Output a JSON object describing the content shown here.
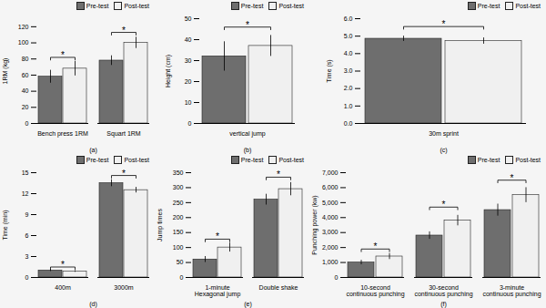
{
  "chart_data": [
    {
      "type": "bar",
      "xlabel": "(a)",
      "ylabel": "1RM (kg)",
      "categories": [
        "Bench press 1RM",
        "Squart 1RM"
      ],
      "series": [
        {
          "name": "Pre-test",
          "color": "#6e6e6e",
          "values": [
            58,
            78
          ],
          "errors": [
            8,
            6
          ]
        },
        {
          "name": "Post-test",
          "color": "#f0f0f0",
          "values": [
            68,
            100
          ],
          "errors": [
            9,
            7
          ]
        }
      ],
      "ylim": [
        0,
        130
      ],
      "yticks": [
        0,
        20,
        40,
        60,
        80,
        100,
        120
      ],
      "legend": "upper right",
      "significance": [
        {
          "category": "Bench press 1RM",
          "y": 82,
          "label": "*"
        },
        {
          "category": "Squart 1RM",
          "y": 113,
          "label": "*"
        }
      ]
    },
    {
      "type": "bar",
      "xlabel": "(b)",
      "ylabel": "Height (cm)",
      "categories": [
        "vertical jump"
      ],
      "series": [
        {
          "name": "Pre-test",
          "color": "#6e6e6e",
          "values": [
            32
          ],
          "errors": [
            7
          ]
        },
        {
          "name": "Post-test",
          "color": "#f0f0f0",
          "values": [
            37
          ],
          "errors": [
            5
          ]
        }
      ],
      "ylim": [
        0,
        50
      ],
      "yticks": [
        0,
        10,
        20,
        30,
        40,
        50
      ],
      "legend": "upper right",
      "significance": [
        {
          "category": "vertical jump",
          "y": 46,
          "label": "*"
        }
      ]
    },
    {
      "type": "bar",
      "xlabel": "(c)",
      "ylabel": "Time (s)",
      "categories": [
        "30m sprint"
      ],
      "series": [
        {
          "name": "Pre-test",
          "color": "#6e6e6e",
          "values": [
            4.85
          ],
          "errors": [
            0.15
          ]
        },
        {
          "name": "Post-test",
          "color": "#f0f0f0",
          "values": [
            4.72
          ],
          "errors": [
            0.18
          ]
        }
      ],
      "ylim": [
        0,
        6
      ],
      "yticks": [
        0,
        1,
        2,
        3,
        4,
        5,
        6
      ],
      "legend": "upper right",
      "significance": [
        {
          "category": "30m sprint",
          "y": 5.55,
          "label": "*"
        }
      ]
    },
    {
      "type": "bar",
      "xlabel": "(d)",
      "ylabel": "Time (min)",
      "categories": [
        "400m",
        "3000m"
      ],
      "series": [
        {
          "name": "Pre-test",
          "color": "#6e6e6e",
          "values": [
            1.0,
            13.5
          ],
          "errors": [
            0.15,
            0.5
          ]
        },
        {
          "name": "Post-test",
          "color": "#f0f0f0",
          "values": [
            0.85,
            12.5
          ],
          "errors": [
            0.1,
            0.4
          ]
        }
      ],
      "ylim": [
        0,
        15
      ],
      "yticks": [
        0,
        3,
        6,
        9,
        12,
        15
      ],
      "legend": "upper right",
      "significance": [
        {
          "category": "400m",
          "y": 1.5,
          "label": "*"
        },
        {
          "category": "3000m",
          "y": 14.6,
          "label": "*"
        }
      ]
    },
    {
      "type": "bar",
      "xlabel": "(e)",
      "ylabel": "Jump times",
      "categories": [
        "1-minute\nHexagonal jump",
        "Double shake"
      ],
      "series": [
        {
          "name": "Pre-test",
          "color": "#6e6e6e",
          "values": [
            60,
            260
          ],
          "errors": [
            10,
            18
          ]
        },
        {
          "name": "Post-test",
          "color": "#f0f0f0",
          "values": [
            100,
            295
          ],
          "errors": [
            15,
            22
          ]
        }
      ],
      "ylim": [
        0,
        350
      ],
      "yticks": [
        0,
        50,
        100,
        150,
        200,
        250,
        300,
        350
      ],
      "legend": "upper right",
      "significance": [
        {
          "category": "1-minute\nHexagonal jump",
          "y": 128,
          "label": "*"
        },
        {
          "category": "Double shake",
          "y": 335,
          "label": "*"
        }
      ]
    },
    {
      "type": "bar",
      "xlabel": "(f)",
      "ylabel": "Punching power (kw)",
      "categories": [
        "10-second\ncontinuous punching",
        "30-second\ncontinuous punching",
        "3-minute\ncontinuous punching"
      ],
      "series": [
        {
          "name": "Pre-test",
          "color": "#6e6e6e",
          "values": [
            1000,
            2800,
            4500
          ],
          "errors": [
            150,
            250,
            400
          ]
        },
        {
          "name": "Post-test",
          "color": "#f0f0f0",
          "values": [
            1400,
            3800,
            5500
          ],
          "errors": [
            200,
            350,
            500
          ]
        }
      ],
      "ylim": [
        0,
        7000
      ],
      "yticks": [
        0,
        1000,
        2000,
        3000,
        4000,
        5000,
        6000,
        7000
      ],
      "legend": "upper right",
      "significance": [
        {
          "category": "10-second\ncontinuous punching",
          "y": 1900,
          "label": "*"
        },
        {
          "category": "30-second\ncontinuous punching",
          "y": 4700,
          "label": "*"
        },
        {
          "category": "3-minute\ncontinuous punching",
          "y": 6500,
          "label": "*"
        }
      ]
    }
  ]
}
